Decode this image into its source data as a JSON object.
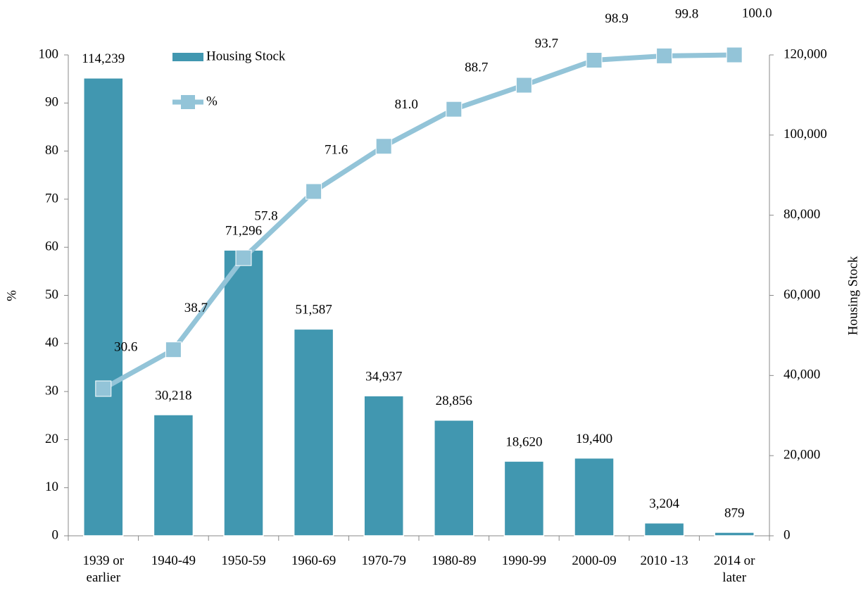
{
  "chart_data": {
    "type": "bar",
    "categories": [
      "1939 or earlier",
      "1940-49",
      "1950-59",
      "1960-69",
      "1970-79",
      "1980-89",
      "1990-99",
      "2000-09",
      "2010 -13",
      "2014 or later"
    ],
    "series": [
      {
        "name": "Housing Stock",
        "type": "bar",
        "axis": "y2",
        "color": "#4197b0",
        "values": [
          114239,
          30218,
          71296,
          51587,
          34937,
          28856,
          18620,
          19400,
          3204,
          879
        ],
        "value_labels": [
          "114,239",
          "30,218",
          "71,296",
          "51,587",
          "34,937",
          "28,856",
          "18,620",
          "19,400",
          "3,204",
          "879"
        ]
      },
      {
        "name": "%",
        "type": "line",
        "axis": "y",
        "color": "#93c4d8",
        "values": [
          30.6,
          38.7,
          57.8,
          71.6,
          81.0,
          88.7,
          93.7,
          98.9,
          99.8,
          100.0
        ],
        "value_labels": [
          "30.6",
          "38.7",
          "57.8",
          "71.6",
          "81.0",
          "88.7",
          "93.7",
          "98.9",
          "99.8",
          "100.0"
        ]
      }
    ],
    "ylabel": "%",
    "y2label": "Housing Stock",
    "ylim": [
      0,
      100
    ],
    "yticks": [
      0,
      10,
      20,
      30,
      40,
      50,
      60,
      70,
      80,
      90,
      100
    ],
    "y2lim": [
      0,
      120000
    ],
    "y2ticks": [
      0,
      {
        "value": 20000,
        "label": "20,000"
      },
      {
        "value": 40000,
        "label": "40,000"
      },
      {
        "value": 60000,
        "label": "60,000"
      },
      {
        "value": 80000,
        "label": "80,000"
      },
      {
        "value": 100000,
        "label": "100,000"
      },
      {
        "value": 120000,
        "label": "120,000"
      }
    ],
    "legend": "top-left",
    "grid": false
  }
}
